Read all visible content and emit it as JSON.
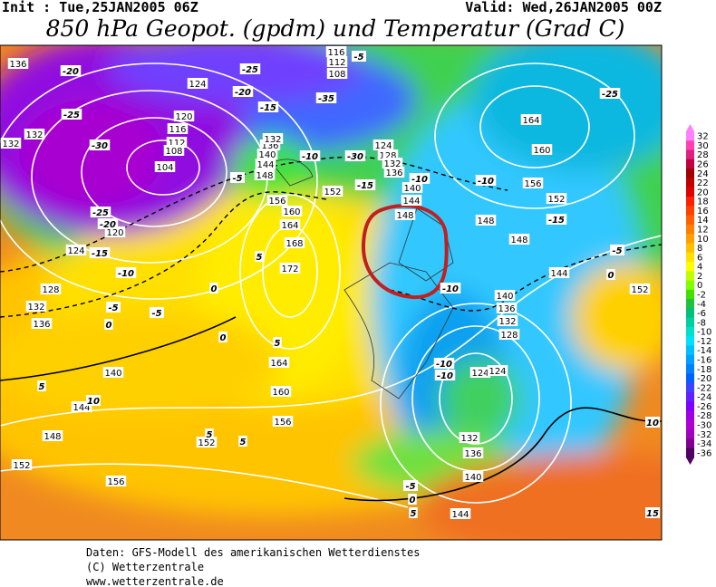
{
  "header": {
    "init": "Init : Tue,25JAN2005 06Z",
    "valid": "Valid: Wed,26JAN2005 00Z",
    "title": "850 hPa Geopot. (gpdm) und Temperatur (Grad C)"
  },
  "geopotential_labels": [
    136,
    132,
    132,
    124,
    120,
    116,
    112,
    108,
    104,
    120,
    124,
    128,
    132,
    136,
    140,
    144,
    148,
    152,
    156,
    152,
    156,
    160,
    164,
    168,
    172,
    164,
    160,
    156,
    152,
    148,
    144,
    140,
    136,
    132,
    116,
    112,
    108,
    124,
    128,
    132,
    136,
    140,
    144,
    148,
    148,
    148,
    156,
    160,
    164,
    152,
    144,
    152,
    140,
    136,
    132,
    128,
    124,
    124,
    132,
    136,
    140,
    144
  ],
  "temperature_labels": [
    -20,
    -25,
    -20,
    -15,
    -25,
    -30,
    -25,
    -20,
    -15,
    -10,
    -5,
    0,
    -5,
    -35,
    -30,
    -10,
    -15,
    -10,
    -10,
    -15,
    -10,
    -5,
    0,
    -25,
    -5,
    5,
    5,
    0,
    0,
    -10,
    -10,
    5,
    10,
    -5,
    0,
    5,
    5,
    5,
    10,
    15,
    -5
  ],
  "colorbar": {
    "ticks": [
      32,
      30,
      28,
      26,
      24,
      22,
      20,
      18,
      16,
      14,
      12,
      10,
      8,
      6,
      4,
      2,
      0,
      -2,
      -4,
      -6,
      -8,
      -10,
      -12,
      -14,
      -16,
      -18,
      -20,
      -22,
      -24,
      -26,
      -28,
      -30,
      -32,
      -34,
      -36
    ],
    "colors": [
      "#ff80ff",
      "#ff40b0",
      "#e02080",
      "#c00040",
      "#a00000",
      "#c00000",
      "#e00000",
      "#ff2000",
      "#ff4000",
      "#ff6000",
      "#ff8000",
      "#ffa000",
      "#ffc000",
      "#ffe000",
      "#ffff00",
      "#c0ff00",
      "#80ff00",
      "#40e000",
      "#20c040",
      "#00c080",
      "#00d0a0",
      "#00e0d0",
      "#00e0ff",
      "#00c0ff",
      "#00a0ff",
      "#0080ff",
      "#0060ff",
      "#4040ff",
      "#6020ff",
      "#8000ff",
      "#a000e0",
      "#b000d0",
      "#a000c0",
      "#800090",
      "#500060"
    ]
  },
  "footer": [
    "Daten: GFS-Modell des amerikanischen Wetterdienstes",
    "(C) Wetterzentrale",
    "www.wetterzentrale.de"
  ]
}
